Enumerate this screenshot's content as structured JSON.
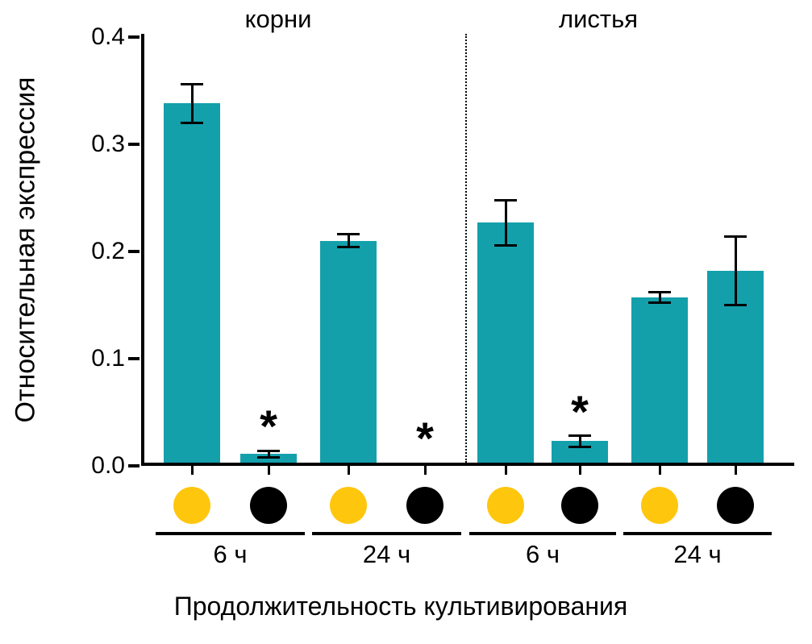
{
  "chart_data": {
    "type": "bar",
    "title": "",
    "ylabel": "Относительная экспрессия",
    "xlabel": "Продолжительность культивирования",
    "ylim": [
      0,
      0.4
    ],
    "yticks": [
      "0.0",
      "0.1",
      "0.2",
      "0.3",
      "0.4"
    ],
    "grid": false,
    "legend": "none",
    "bar_color": "#13a0ab",
    "marker_colors": {
      "yellow": "#ffc60e",
      "black": "#000000"
    },
    "significance_marker": "*",
    "sections": [
      {
        "label": "корни",
        "groups": [
          {
            "label": "6 ч",
            "bars": [
              {
                "marker": "yellow",
                "value": 0.335,
                "error": 0.018,
                "significant": false
              },
              {
                "marker": "black",
                "value": 0.008,
                "error": 0.003,
                "significant": true
              }
            ]
          },
          {
            "label": "24 ч",
            "bars": [
              {
                "marker": "yellow",
                "value": 0.207,
                "error": 0.006,
                "significant": false
              },
              {
                "marker": "black",
                "value": 0.0,
                "error": 0.0,
                "significant": true
              }
            ]
          }
        ]
      },
      {
        "label": "листья",
        "groups": [
          {
            "label": "6 ч",
            "bars": [
              {
                "marker": "yellow",
                "value": 0.224,
                "error": 0.021,
                "significant": false
              },
              {
                "marker": "black",
                "value": 0.02,
                "error": 0.005,
                "significant": true
              }
            ]
          },
          {
            "label": "24 ч",
            "bars": [
              {
                "marker": "yellow",
                "value": 0.154,
                "error": 0.005,
                "significant": false
              },
              {
                "marker": "black",
                "value": 0.179,
                "error": 0.032,
                "significant": false
              }
            ]
          }
        ]
      }
    ]
  }
}
